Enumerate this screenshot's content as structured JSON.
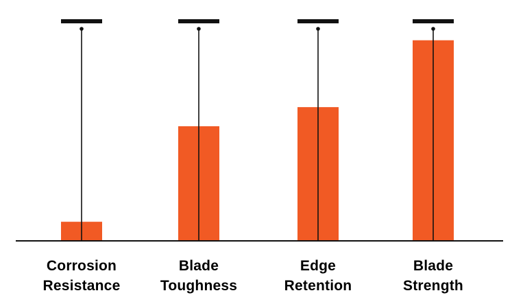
{
  "chart_data": {
    "type": "bar",
    "categories": [
      [
        "Corrosion",
        "Resistance"
      ],
      [
        "Blade",
        "Toughness"
      ],
      [
        "Edge",
        "Retention"
      ],
      [
        "Blade",
        "Strength"
      ]
    ],
    "values": [
      8,
      48,
      56,
      84
    ],
    "ylim": [
      0,
      100
    ],
    "grid": false,
    "legend": "none",
    "colors": {
      "bar": "#f15a24",
      "cap": "#111111",
      "stem": "#111111",
      "axis": "#111111",
      "label": "#000000"
    }
  }
}
